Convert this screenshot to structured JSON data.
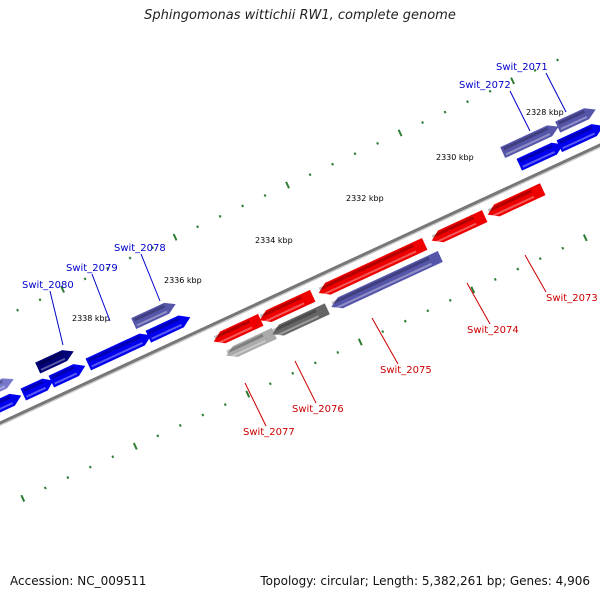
{
  "title": "Sphingomonas wittichii RW1, complete genome",
  "accession_label": "Accession: NC_009511",
  "topology_label": "Topology: circular; Length: 5,382,261 bp; Genes: 4,906",
  "colors": {
    "forward_gene": "#0000ee",
    "reverse_gene": "#ee0000",
    "dark_forward_gene": "#000077",
    "slate_forward_gene": "#5555aa",
    "light_blue_gene": "#7777cc",
    "gray_gene": "#666666",
    "light_gray_gene": "#aaaaaa",
    "backbone": "#777777",
    "ticks": "#2e7d32",
    "forward_label": "#0000cc",
    "reverse_label": "#cc0000"
  },
  "kbp_labels": [
    "2328 kbp",
    "2330 kbp",
    "2332 kbp",
    "2334 kbp",
    "2336 kbp",
    "2338 kbp"
  ],
  "forward_gene_labels": [
    "Swit_2071",
    "Swit_2072",
    "Swit_2078",
    "Swit_2079",
    "Swit_2080"
  ],
  "reverse_gene_labels": [
    "Swit_2073",
    "Swit_2074",
    "Swit_2075",
    "Swit_2076",
    "Swit_2077"
  ]
}
